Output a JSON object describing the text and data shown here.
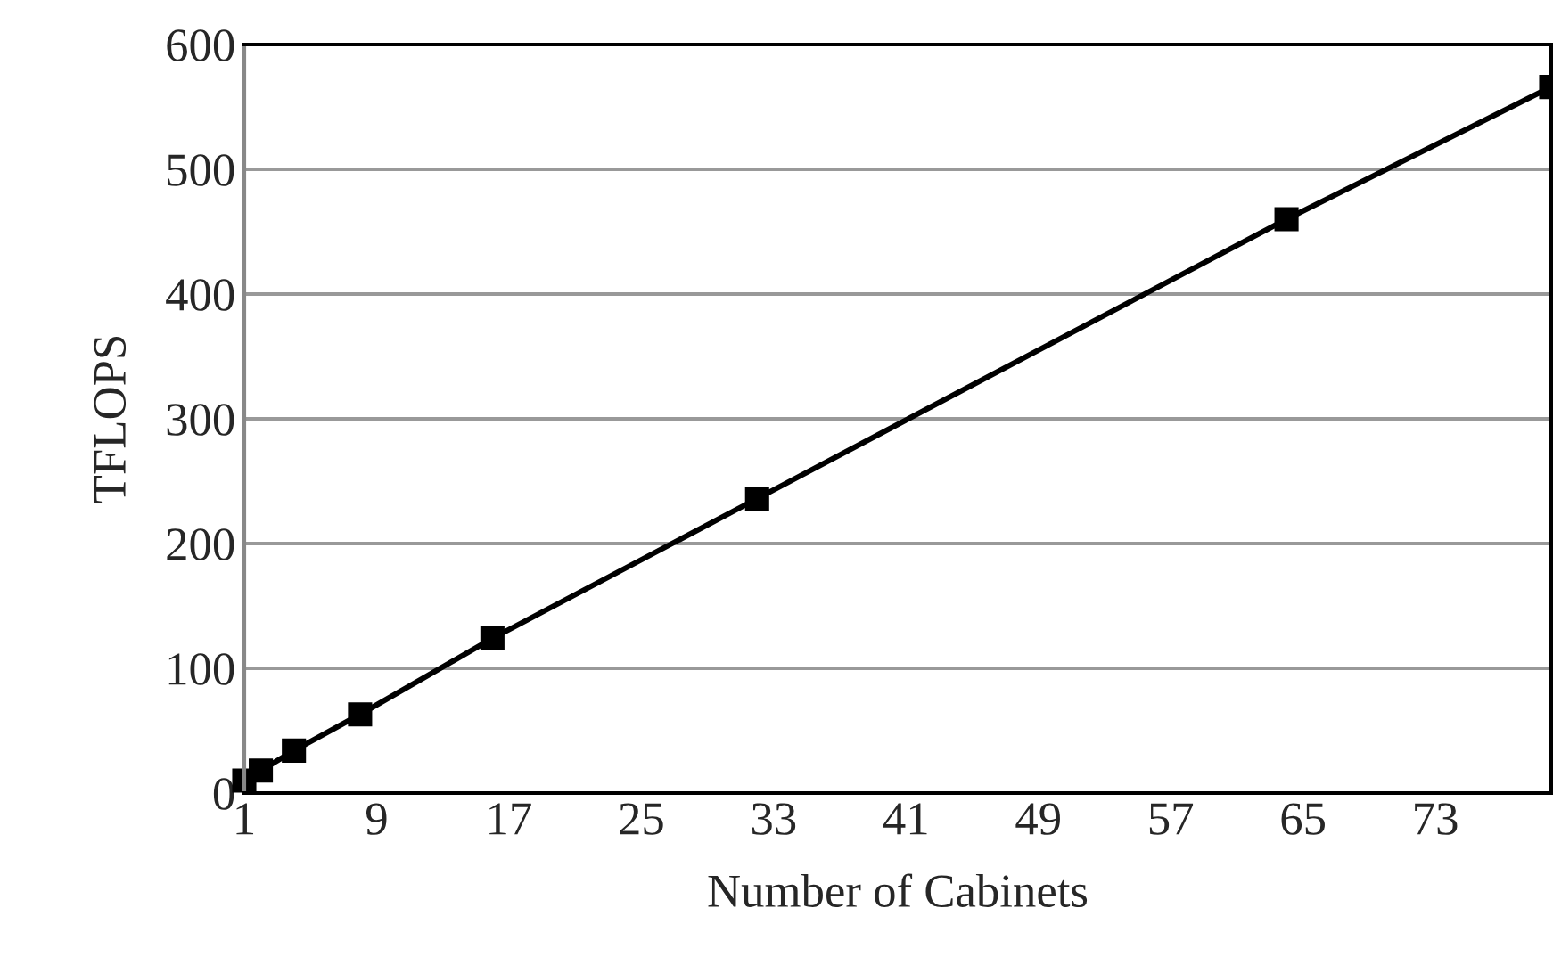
{
  "chart_data": {
    "type": "line",
    "xlabel": "Number of Cabinets",
    "ylabel": "TFLOPS",
    "x": [
      1,
      2,
      4,
      8,
      16,
      32,
      64,
      80
    ],
    "series": [
      {
        "color": "#000000",
        "values": [
          10,
          18,
          34,
          63,
          124,
          236,
          460,
          566
        ]
      }
    ],
    "xlim": [
      1,
      80
    ],
    "xticks": [
      1,
      9,
      17,
      25,
      33,
      41,
      49,
      57,
      65,
      73
    ],
    "ylim": [
      0,
      600
    ],
    "yticks": [
      0,
      100,
      200,
      300,
      400,
      500,
      600
    ],
    "grid": "y",
    "marker": "square",
    "line_style": "solid"
  }
}
